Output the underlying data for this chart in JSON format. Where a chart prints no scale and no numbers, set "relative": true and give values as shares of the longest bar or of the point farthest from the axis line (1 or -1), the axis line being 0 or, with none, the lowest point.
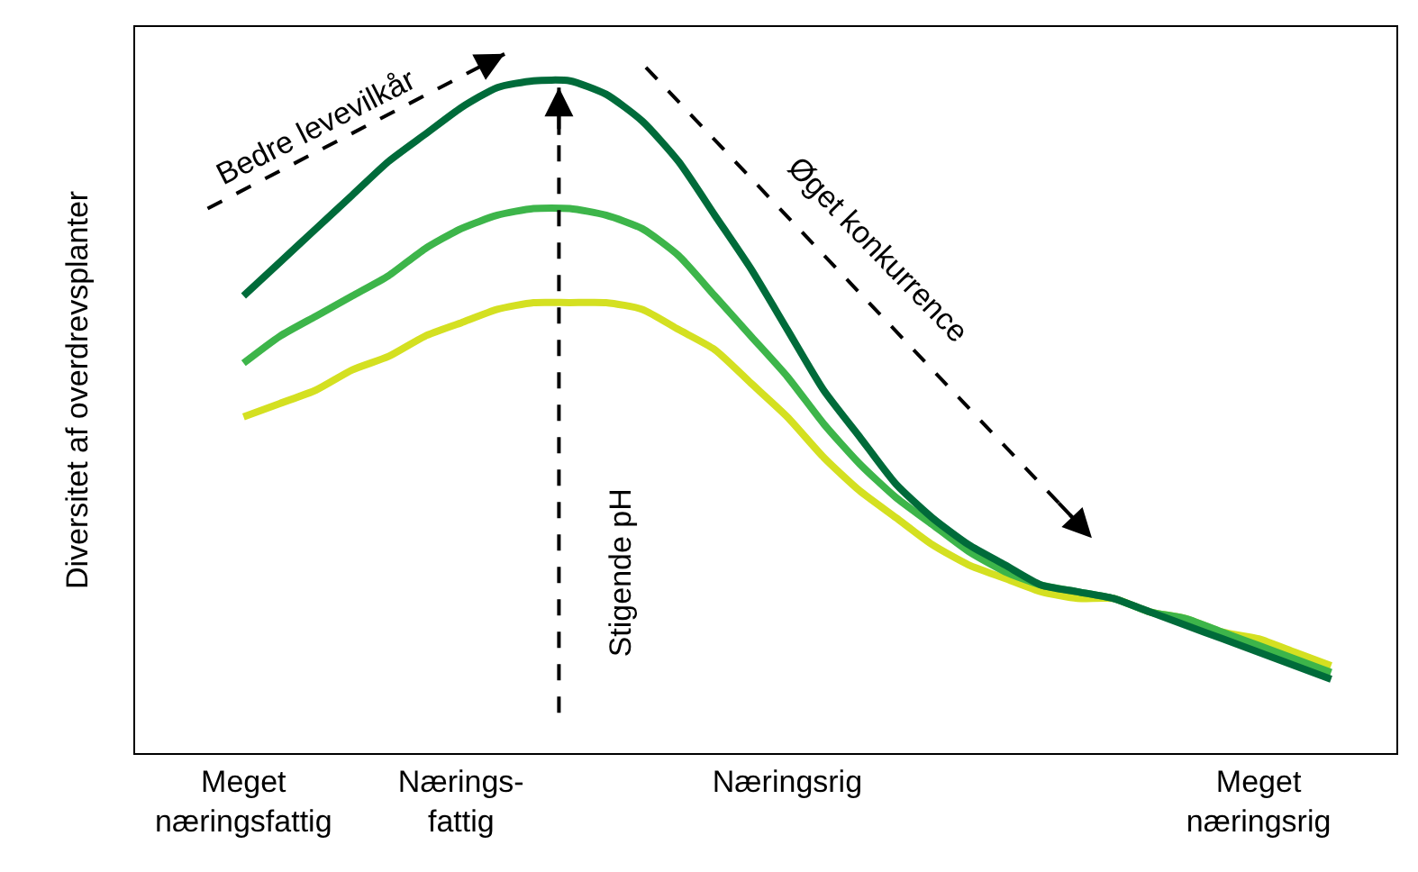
{
  "chart_data": {
    "type": "line",
    "relative": true,
    "ylabel": "Diversitet af overdrevsplanter",
    "tick_labels": "x",
    "line_style": "solid",
    "marker": "none",
    "categories": [
      "Meget\nnæringsfattig",
      null,
      null,
      null,
      null,
      null,
      "Nærings-\nfattig",
      null,
      null,
      null,
      null,
      null,
      null,
      null,
      null,
      "Næringsrig",
      null,
      null,
      null,
      null,
      null,
      null,
      null,
      null,
      null,
      null,
      null,
      null,
      "Meget\nnæringsrig",
      null,
      null
    ],
    "series": [
      {
        "color": "#d4e021",
        "values": [
          0.5,
          0.52,
          0.54,
          0.57,
          0.59,
          0.62,
          0.64,
          0.66,
          0.67,
          0.67,
          0.67,
          0.66,
          0.63,
          0.6,
          0.55,
          0.5,
          0.44,
          0.39,
          0.35,
          0.31,
          0.28,
          0.26,
          0.24,
          0.23,
          0.23,
          0.21,
          0.2,
          0.18,
          0.17,
          0.15,
          0.13
        ]
      },
      {
        "color": "#3db54a",
        "values": [
          0.58,
          0.62,
          0.65,
          0.68,
          0.71,
          0.75,
          0.78,
          0.8,
          0.81,
          0.81,
          0.8,
          0.78,
          0.74,
          0.68,
          0.62,
          0.56,
          0.49,
          0.43,
          0.38,
          0.34,
          0.3,
          0.27,
          0.25,
          0.24,
          0.23,
          0.21,
          0.2,
          0.18,
          0.16,
          0.14,
          0.12
        ]
      },
      {
        "color": "#006b3a",
        "values": [
          0.68,
          0.73,
          0.78,
          0.83,
          0.88,
          0.92,
          0.96,
          0.99,
          1.0,
          1.0,
          0.98,
          0.94,
          0.88,
          0.8,
          0.72,
          0.63,
          0.54,
          0.47,
          0.4,
          0.35,
          0.31,
          0.28,
          0.25,
          0.24,
          0.23,
          0.21,
          0.19,
          0.17,
          0.15,
          0.13,
          0.11
        ]
      }
    ],
    "annotations": [
      "Bedre levevilkår",
      "Stigende pH",
      "Øget konkurrence"
    ]
  }
}
